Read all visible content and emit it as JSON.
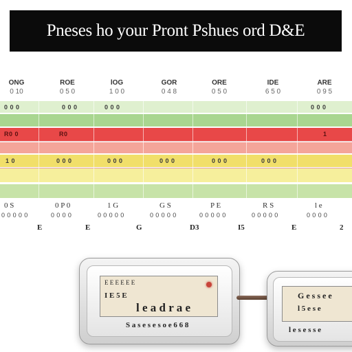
{
  "title": "Pneses ho your Pront Pshues ord D&E",
  "colors": {
    "title_bg": "#0b0b0b",
    "band_light_green": "#dff0cf",
    "band_green": "#a9d690",
    "band_red": "#e84848",
    "band_salmon": "#f4a59a",
    "band_yellow": "#f1df6a",
    "band_pale_yellow": "#f6ef9c",
    "band_pale_green": "#c7e3a8"
  },
  "columns": [
    {
      "header": "ONG",
      "sub": "0 10"
    },
    {
      "header": "ROE",
      "sub": "0 5 0"
    },
    {
      "header": "lOG",
      "sub": "1 0 0"
    },
    {
      "header": "GOR",
      "sub": "0 4 8"
    },
    {
      "header": "ORE",
      "sub": "0 5 0"
    },
    {
      "header": "IDE",
      "sub": "6 5 0"
    },
    {
      "header": "ARE",
      "sub": "0 9 5"
    }
  ],
  "cell_labels": {
    "light_green_row": [
      "0 0 0",
      "0 0 0",
      "0 0 0",
      "0 0 0"
    ],
    "red_row": [
      "R0",
      "R0 0",
      "1"
    ],
    "yellow_row": [
      "1 0",
      "0 0 0",
      "0 0 0",
      "0 0 0",
      "0 0 0",
      "0 0 0"
    ]
  },
  "footer": {
    "top": [
      "0 S",
      "0 P 0",
      "1 G",
      "G S",
      "P E",
      "R S",
      "l e"
    ],
    "mid": [
      "0 0 0 0 0",
      "0 0 0 0",
      "0 0 0 0 0",
      "0 0 0 0 0",
      "0 0 0 0 0",
      "0 0 0 0 0",
      "0 0 0 0"
    ],
    "bottom": [
      "E",
      "E",
      "G",
      "D3",
      "I5",
      "E",
      "2"
    ]
  },
  "device_left": {
    "screen_line1": "E E E E E E",
    "screen_line2": "I E 5 E",
    "screen_line3": "l e a d r a e",
    "label": "S a s e s e s o e 6 6 8"
  },
  "device_right": {
    "screen_line1": "G e s s e e",
    "screen_line2": "l 5 e s e",
    "label": "l e s e s s e"
  }
}
